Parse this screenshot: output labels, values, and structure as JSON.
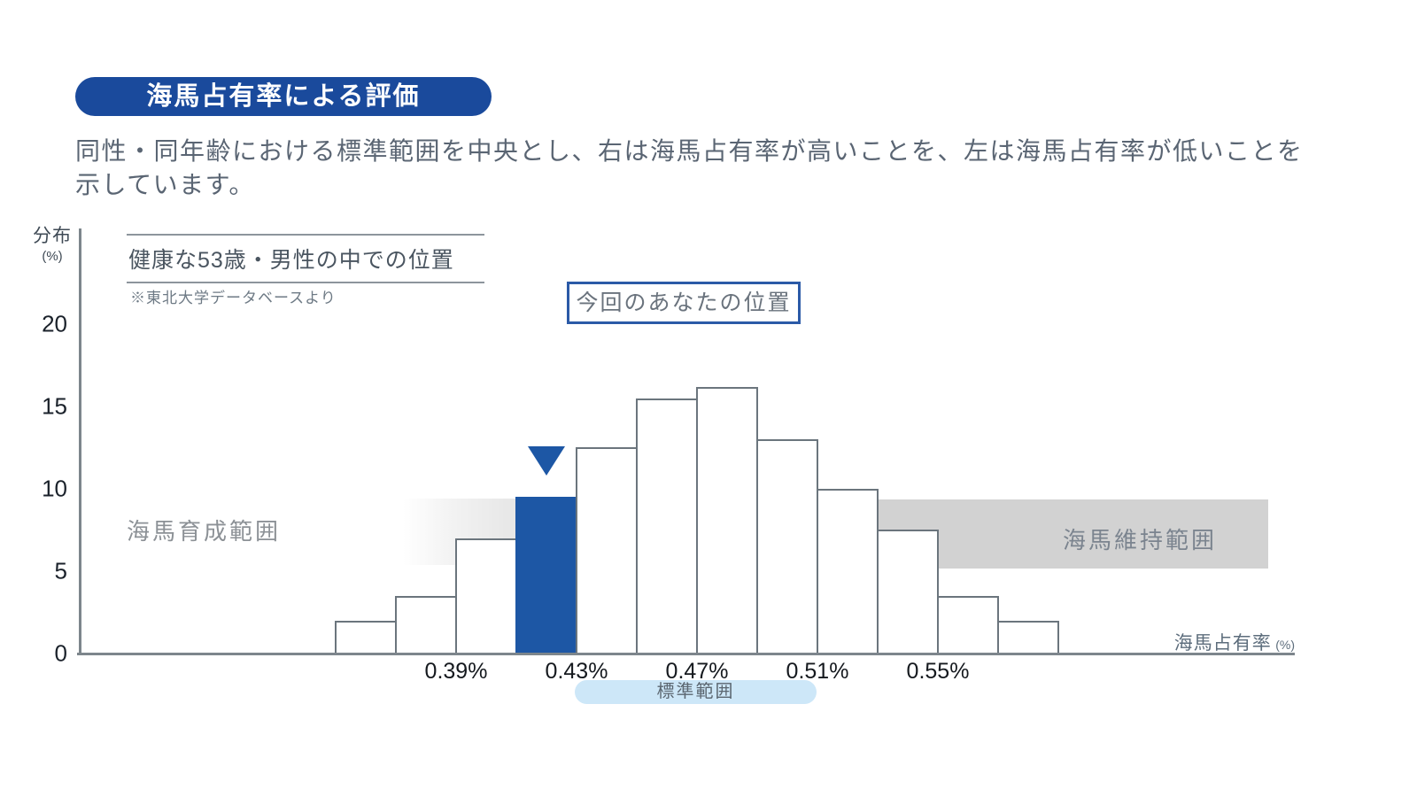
{
  "title_badge": "海馬占有率による評価",
  "description": "同性・同年齢における標準範囲を中央とし、右は海馬占有率が高いことを、左は海馬占有率が低いことを示しています。",
  "chart": {
    "ylabel_main": "分布",
    "ylabel_unit": "(%)",
    "header": "健康な53歳・男性の中での位置",
    "header_note": "※東北大学データベースより",
    "position_box_label": "今回のあなたの位置",
    "left_zone_label": "海馬育成範囲",
    "right_zone_label": "海馬維持範囲",
    "standard_range_label": "標準範囲",
    "xlabel_main": "海馬占有率",
    "xlabel_unit": "(%)"
  },
  "chart_data": {
    "type": "bar",
    "title": "健康な53歳・男性の中での位置",
    "xlabel": "海馬占有率 (%)",
    "ylabel": "分布 (%)",
    "bin_start_percent": 0.35,
    "bin_width_percent": 0.02,
    "values": [
      2,
      3.5,
      7,
      9.5,
      12.5,
      15.5,
      16.2,
      13,
      10,
      7.5,
      3.5,
      2
    ],
    "highlight_index": 3,
    "highlight_bin": "0.41-0.43%",
    "highlight_label": "今回のあなたの位置",
    "x_tick_labels": [
      "0.39%",
      "0.43%",
      "0.47%",
      "0.51%",
      "0.55%"
    ],
    "y_ticks": [
      0,
      5,
      10,
      15,
      20
    ],
    "ylim": [
      0,
      22
    ],
    "grid": false,
    "annotations": [
      "海馬育成範囲",
      "海馬維持範囲",
      "標準範囲",
      "※東北大学データベースより"
    ]
  },
  "colors": {
    "badge_blue": "#1a4a9c",
    "bar_blue": "#1d57a5",
    "box_border_blue": "#2b5aa7",
    "bar_border_gray": "#6b757d",
    "axis_gray": "#7d868c",
    "zone_gray": "#d2d2d2",
    "pill_blue": "#cde7f8"
  }
}
